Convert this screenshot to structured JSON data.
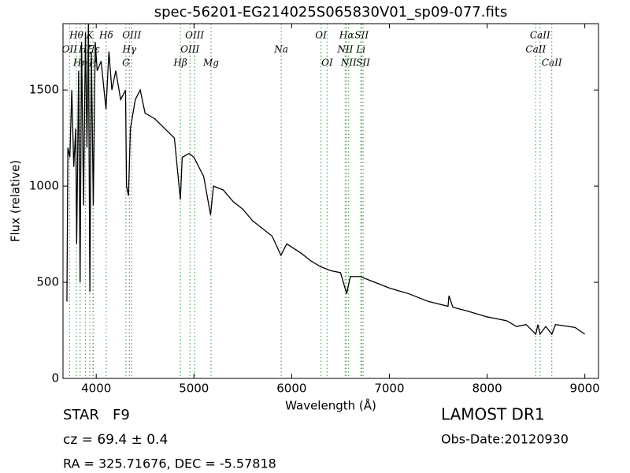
{
  "chart_data": {
    "type": "line",
    "title": "spec-56201-EG214025S065830V01_sp09-077.fits",
    "xlabel": "Wavelength (Å)",
    "ylabel": "Flux (relative)",
    "color": "#000000",
    "line_color": "#55aa55",
    "xlim": [
      3660,
      9140
    ],
    "ylim": [
      0,
      1845
    ],
    "xticks": [
      4000,
      5000,
      6000,
      7000,
      8000,
      9000
    ],
    "yticks": [
      0,
      500,
      1000,
      1500
    ],
    "x": [
      3700,
      3710,
      3730,
      3750,
      3770,
      3790,
      3800,
      3820,
      3835,
      3850,
      3870,
      3890,
      3905,
      3920,
      3935,
      3950,
      3970,
      3990,
      4010,
      4050,
      4100,
      4130,
      4160,
      4200,
      4250,
      4300,
      4310,
      4330,
      4350,
      4400,
      4450,
      4500,
      4600,
      4700,
      4800,
      4861,
      4880,
      4950,
      5000,
      5100,
      5170,
      5200,
      5300,
      5400,
      5500,
      5600,
      5700,
      5800,
      5890,
      5950,
      6100,
      6200,
      6300,
      6400,
      6500,
      6563,
      6600,
      6700,
      6800,
      6900,
      7000,
      7200,
      7400,
      7600,
      7610,
      7650,
      7800,
      8000,
      8200,
      8300,
      8400,
      8498,
      8520,
      8542,
      8600,
      8662,
      8700,
      8900,
      9000
    ],
    "values": [
      400,
      1200,
      1150,
      1500,
      1100,
      1300,
      700,
      1600,
      500,
      1750,
      900,
      1800,
      1200,
      1845,
      450,
      1700,
      900,
      1750,
      1600,
      1650,
      1400,
      1700,
      1500,
      1600,
      1450,
      1500,
      1000,
      950,
      1300,
      1450,
      1500,
      1380,
      1350,
      1300,
      1250,
      930,
      1150,
      1170,
      1150,
      1050,
      850,
      1000,
      980,
      920,
      880,
      820,
      780,
      740,
      640,
      700,
      650,
      610,
      580,
      560,
      550,
      440,
      530,
      530,
      510,
      490,
      470,
      440,
      400,
      375,
      430,
      370,
      350,
      320,
      300,
      270,
      280,
      230,
      280,
      230,
      270,
      230,
      280,
      265,
      230
    ],
    "line_labels": [
      [
        {
          "label": "Hθ",
          "x": 3797
        },
        {
          "label": "K",
          "x": 3934
        },
        {
          "label": "Hδ",
          "x": 4102
        },
        {
          "label": "OIII",
          "x": 4363
        },
        {
          "label": "OIII",
          "x": 5007
        },
        {
          "label": "OI",
          "x": 6300
        },
        {
          "label": "Hα",
          "x": 6563
        },
        {
          "label": "SII",
          "x": 6716
        },
        {
          "label": "CaII",
          "x": 8542
        }
      ],
      [
        {
          "label": "OII",
          "x": 3727
        },
        {
          "label": "Hζ",
          "x": 3889
        },
        {
          "label": "Hε",
          "x": 3970
        },
        {
          "label": "Hγ",
          "x": 4340
        },
        {
          "label": "OIII",
          "x": 4959
        },
        {
          "label": "Na",
          "x": 5893
        },
        {
          "label": "NII",
          "x": 6548
        },
        {
          "label": "Li",
          "x": 6708
        },
        {
          "label": "CaII",
          "x": 8498
        }
      ],
      [
        {
          "label": "Hη",
          "x": 3835
        },
        {
          "label": "H",
          "x": 3968
        },
        {
          "label": "G",
          "x": 4304
        },
        {
          "label": "Hβ",
          "x": 4861
        },
        {
          "label": "Mg",
          "x": 5175
        },
        {
          "label": "OI",
          "x": 6363
        },
        {
          "label": "NII",
          "x": 6583
        },
        {
          "label": "SII",
          "x": 6731
        },
        {
          "label": "CaII",
          "x": 8662
        }
      ]
    ],
    "annotations": [
      "STAR   F9",
      "cz = 69.4 ± 0.4",
      "RA = 325.71676, DEC = -5.57818",
      "LAMOST DR1",
      "Obs-Date:20120930"
    ]
  }
}
